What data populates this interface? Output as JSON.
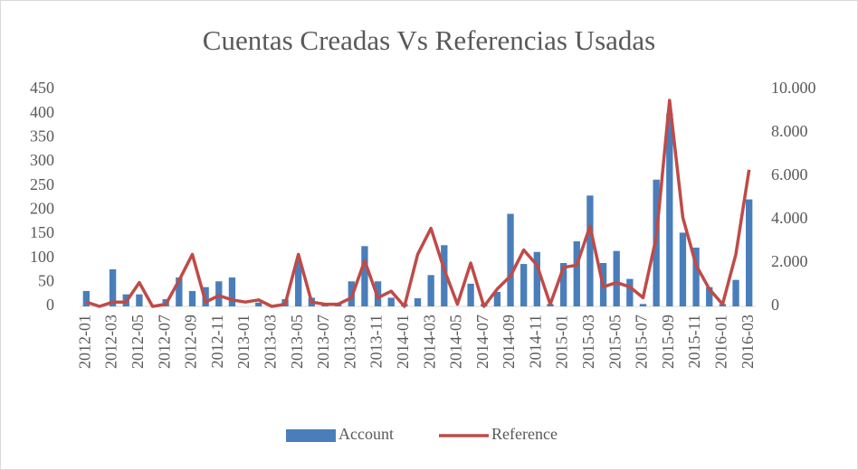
{
  "chart_data": {
    "type": "bar_line",
    "title": "Cuentas Creadas Vs Referencias Usadas",
    "categories": [
      "2012-01",
      null,
      "2012-03",
      null,
      "2012-05",
      null,
      "2012-07",
      null,
      "2012-09",
      null,
      "2012-11",
      null,
      "2013-01",
      null,
      "2013-03",
      null,
      "2013-05",
      null,
      "2013-07",
      null,
      "2013-09",
      null,
      "2013-11",
      null,
      "2014-01",
      null,
      "2014-03",
      null,
      "2014-05",
      null,
      "2014-07",
      null,
      "2014-09",
      null,
      "2014-11",
      null,
      "2015-01",
      null,
      "2015-03",
      null,
      "2015-05",
      null,
      "2015-07",
      null,
      "2015-09",
      null,
      "2015-11",
      null,
      "2016-01",
      null,
      "2016-03"
    ],
    "series": [
      {
        "name": "Account",
        "type": "bar",
        "color": "#4a7ebb",
        "values": [
          32,
          0,
          77,
          25,
          25,
          0,
          15,
          60,
          32,
          40,
          52,
          60,
          0,
          8,
          0,
          15,
          95,
          18,
          5,
          5,
          52,
          125,
          52,
          18,
          5,
          17,
          65,
          127,
          0,
          47,
          5,
          30,
          192,
          88,
          113,
          5,
          90,
          135,
          230,
          90,
          115,
          57,
          5,
          263,
          400,
          153,
          122,
          40,
          5,
          55,
          222
        ]
      },
      {
        "name": "Reference",
        "type": "line",
        "axis": "y2",
        "color": "#be4b48",
        "values": [
          200,
          0,
          200,
          200,
          1100,
          0,
          100,
          1200,
          2400,
          200,
          500,
          300,
          200,
          300,
          0,
          100,
          2400,
          200,
          100,
          100,
          400,
          2100,
          400,
          700,
          0,
          2400,
          3600,
          1700,
          100,
          2000,
          0,
          800,
          1400,
          2600,
          1900,
          100,
          1800,
          1900,
          3700,
          900,
          1100,
          900,
          400,
          3200,
          9500,
          4100,
          1900,
          800,
          100,
          2400,
          6300
        ]
      }
    ],
    "ylim": [
      0,
      450
    ],
    "yticks": [
      0,
      50,
      100,
      150,
      200,
      250,
      300,
      350,
      400,
      450
    ],
    "y2lim": [
      0,
      10000
    ],
    "y2ticks": [
      0,
      {
        "value": 2000,
        "label": "2.000"
      },
      {
        "value": 4000,
        "label": "4.000"
      },
      {
        "value": 6000,
        "label": "6.000"
      },
      {
        "value": 8000,
        "label": "8.000"
      },
      {
        "value": 10000,
        "label": "10.000"
      }
    ],
    "legend": "bottom"
  }
}
